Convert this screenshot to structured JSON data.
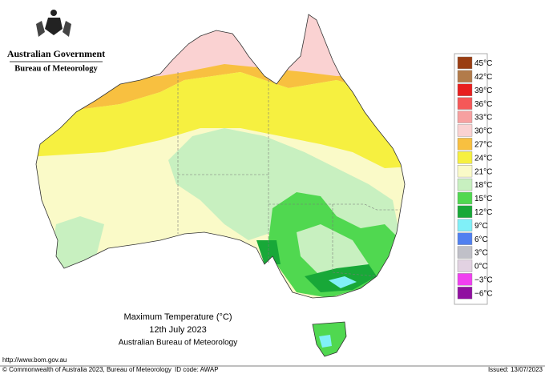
{
  "header": {
    "government": "Australian Government",
    "bureau": "Bureau of Meteorology"
  },
  "map": {
    "title": "Maximum Temperature (°C)",
    "date": "12th July 2023",
    "source": "Australian Bureau of Meteorology"
  },
  "legend": {
    "items": [
      {
        "label": "45°C",
        "color": "#9a3d12"
      },
      {
        "label": "42°C",
        "color": "#b27b4a"
      },
      {
        "label": "39°C",
        "color": "#e81e1e"
      },
      {
        "label": "36°C",
        "color": "#f55858"
      },
      {
        "label": "33°C",
        "color": "#f7a0a0"
      },
      {
        "label": "30°C",
        "color": "#fad2d2"
      },
      {
        "label": "27°C",
        "color": "#f8c040"
      },
      {
        "label": "24°C",
        "color": "#f6f040"
      },
      {
        "label": "21°C",
        "color": "#fafac8"
      },
      {
        "label": "18°C",
        "color": "#c8f0c0"
      },
      {
        "label": "15°C",
        "color": "#50d850"
      },
      {
        "label": "12°C",
        "color": "#18a838"
      },
      {
        "label": "9°C",
        "color": "#80f0f8"
      },
      {
        "label": "6°C",
        "color": "#5080f0"
      },
      {
        "label": "3°C",
        "color": "#c0c0c8"
      },
      {
        "label": "0°C",
        "color": "#e2d2e2"
      },
      {
        "label": "−3°C",
        "color": "#f040f0"
      },
      {
        "label": "−6°C",
        "color": "#9010a0"
      }
    ]
  },
  "footer": {
    "url": "http://www.bom.gov.au",
    "copyright": "© Commonwealth of Australia 2023, Bureau of Meteorology",
    "id_code": "ID code: AWAP",
    "issued": "Issued: 13/07/2023"
  }
}
